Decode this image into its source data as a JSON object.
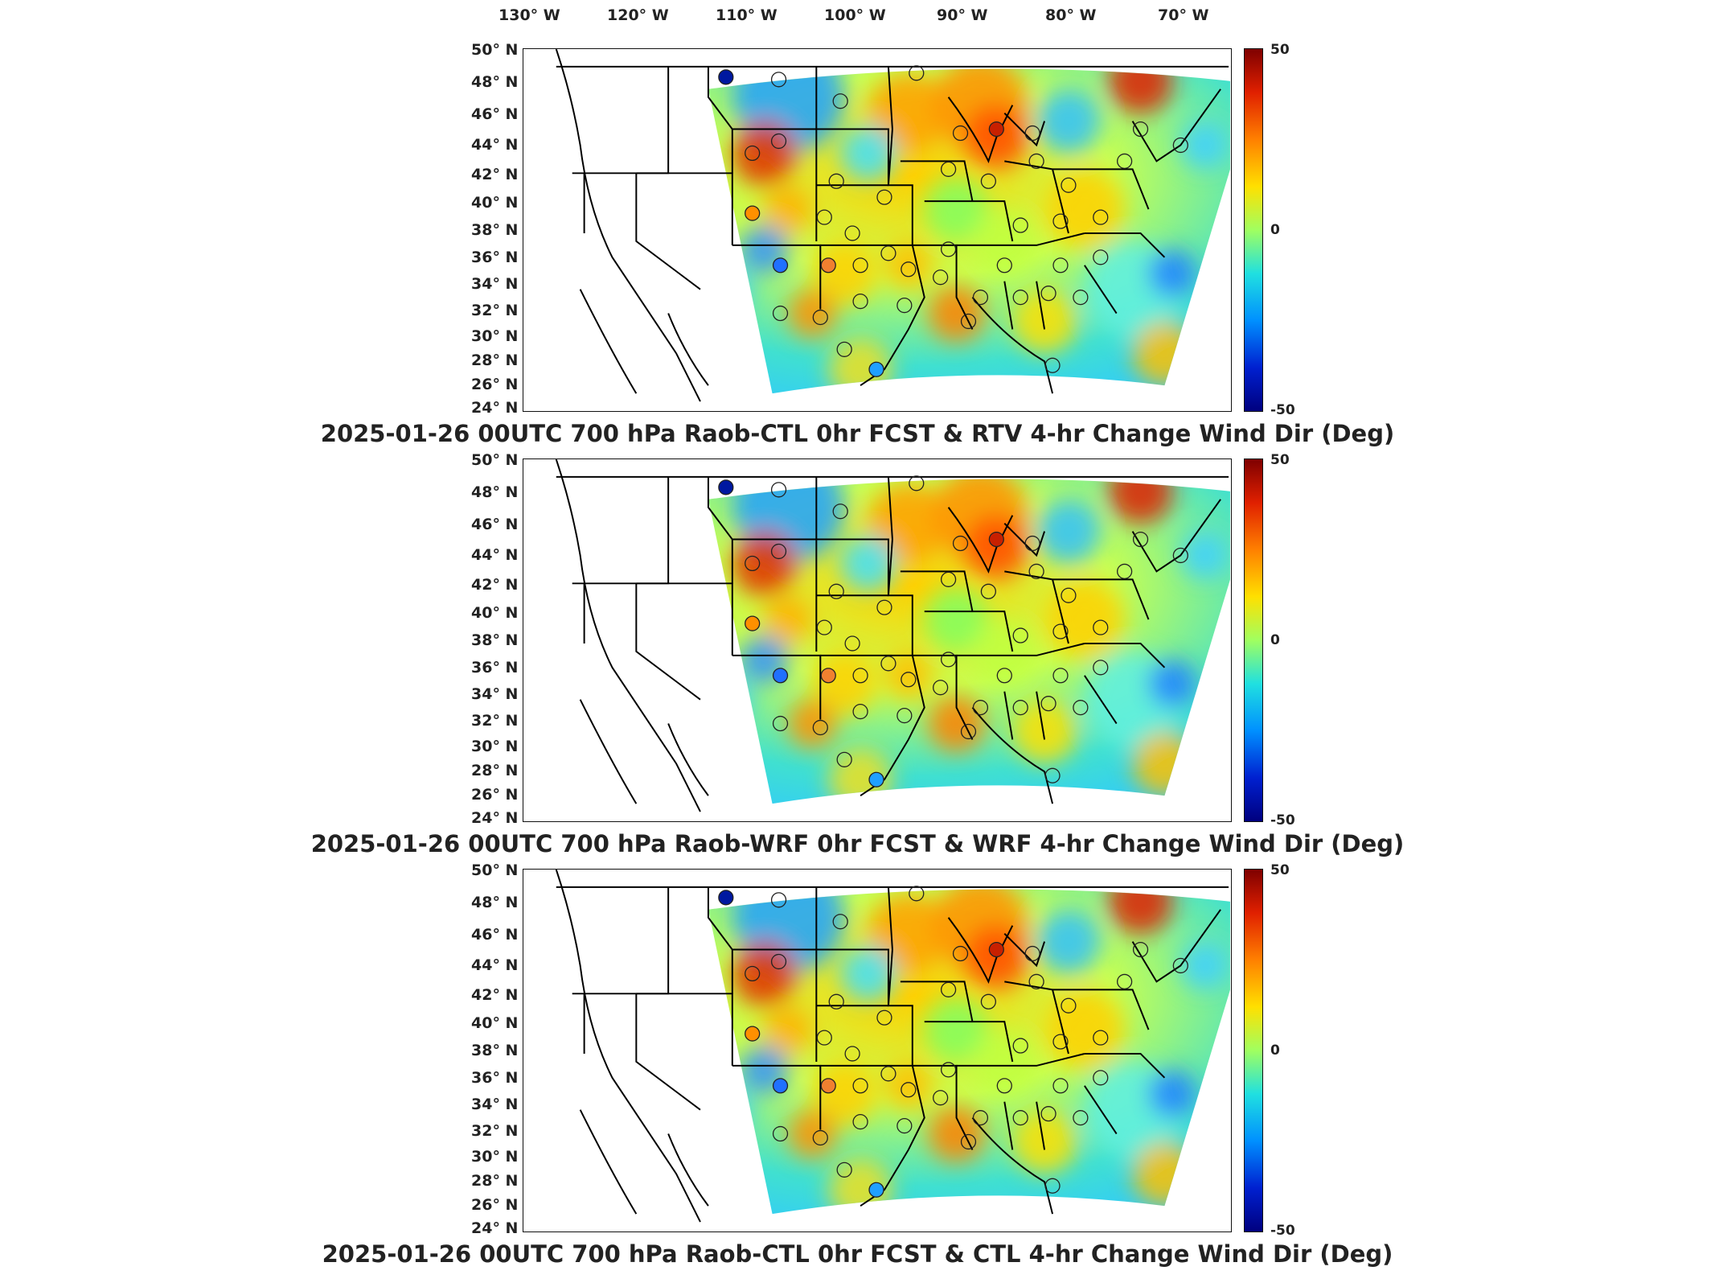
{
  "longitude_labels": [
    "130° W",
    "120° W",
    "110° W",
    "100° W",
    "90° W",
    "80° W",
    "70° W"
  ],
  "latitude_labels": [
    "50° N",
    "48° N",
    "46° N",
    "44° N",
    "42° N",
    "40° N",
    "38° N",
    "36° N",
    "34° N",
    "32° N",
    "30° N",
    "28° N",
    "26° N",
    "24° N"
  ],
  "colorbar": {
    "max": "50",
    "mid": "0",
    "min": "-50",
    "colors": [
      "#7f0000",
      "#e02000",
      "#ff8000",
      "#ffe000",
      "#a0ff60",
      "#20e0e0",
      "#0090ff",
      "#0020d0",
      "#00007f"
    ]
  },
  "panels": [
    {
      "title": "2025-01-26 00UTC 700 hPa Raob-CTL 0hr FCST & RTV 4-hr Change Wind Dir (Deg)"
    },
    {
      "title": "2025-01-26 00UTC 700 hPa Raob-WRF 0hr FCST & WRF 4-hr Change Wind Dir (Deg)"
    },
    {
      "title": "2025-01-26 00UTC 700 hPa Raob-CTL 0hr FCST & CTL 4-hr Change Wind Dir (Deg)"
    }
  ]
}
